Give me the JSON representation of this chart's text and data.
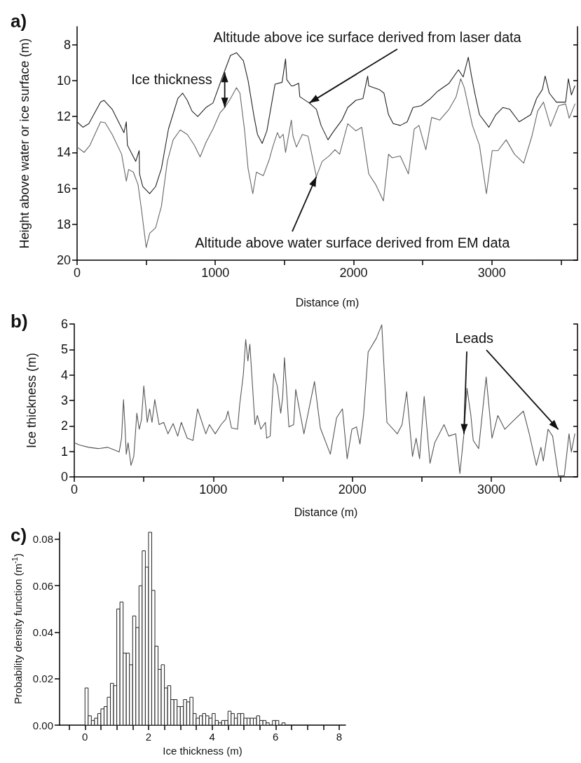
{
  "chart_data": [
    {
      "type": "line",
      "title": "a)",
      "xlabel": "Distance (m)",
      "ylabel": "Height above water or ice surface (m)",
      "marker": "none",
      "xlim": [
        0,
        3620
      ],
      "xticks": [
        0,
        {
          "value": 500,
          "label": null
        },
        1000,
        {
          "value": 1500,
          "label": null
        },
        2000,
        {
          "value": 2500,
          "label": null
        },
        3000,
        {
          "value": 3500,
          "label": null
        }
      ],
      "ylim": [
        20,
        7
      ],
      "yticks": [
        8,
        10,
        12,
        14,
        16,
        18,
        20
      ],
      "series": [
        {
          "color": "#222222",
          "x": [
            0,
            42,
            85,
            170,
            195,
            254,
            339,
            356,
            364,
            424,
            449,
            452,
            475,
            525,
            568,
            610,
            661,
            729,
            763,
            797,
            831,
            873,
            932,
            983,
            1051,
            1110,
            1153,
            1203,
            1237,
            1280,
            1305,
            1339,
            1373,
            1432,
            1483,
            1508,
            1517,
            1550,
            1562,
            1603,
            1611,
            1680,
            1731,
            1765,
            1815,
            1849,
            1916,
            1958,
            2017,
            2068,
            2102,
            2110,
            2186,
            2220,
            2253,
            2287,
            2338,
            2388,
            2430,
            2489,
            2557,
            2608,
            2691,
            2759,
            2793,
            2830,
            2852,
            2877,
            2911,
            2979,
            3029,
            3080,
            3130,
            3198,
            3282,
            3324,
            3366,
            3386,
            3416,
            3467,
            3534,
            3554,
            3576,
            3601
          ],
          "values": [
            12.3,
            12.6,
            12.4,
            11.2,
            11.1,
            11.6,
            12.9,
            12.3,
            13.6,
            14.5,
            13.9,
            15.2,
            15.9,
            16.3,
            15.9,
            14.9,
            12.7,
            11.0,
            10.7,
            11.1,
            11.7,
            12.0,
            11.5,
            11.25,
            9.8,
            8.6,
            8.45,
            8.9,
            10.0,
            12.0,
            13.0,
            13.5,
            12.8,
            10.2,
            10.1,
            8.8,
            9.95,
            10.3,
            10.3,
            10.15,
            10.9,
            11.25,
            11.6,
            12.5,
            13.3,
            12.9,
            12.2,
            11.5,
            11.1,
            11.0,
            9.75,
            10.3,
            10.5,
            10.7,
            11.9,
            12.4,
            12.5,
            12.3,
            11.5,
            11.4,
            11.0,
            10.6,
            10.15,
            9.4,
            9.8,
            8.7,
            9.7,
            10.7,
            11.9,
            12.6,
            11.9,
            11.5,
            11.6,
            12.3,
            11.9,
            11.0,
            10.5,
            9.75,
            10.7,
            11.2,
            11.2,
            9.9,
            10.8,
            10.3
          ]
        },
        {
          "color": "#666666",
          "x": [
            0,
            51,
            93,
            170,
            203,
            254,
            322,
            356,
            373,
            407,
            441,
            466,
            500,
            525,
            568,
            610,
            653,
            695,
            746,
            797,
            848,
            890,
            932,
            983,
            1034,
            1068,
            1110,
            1153,
            1178,
            1212,
            1237,
            1271,
            1297,
            1347,
            1390,
            1415,
            1449,
            1466,
            1491,
            1508,
            1550,
            1562,
            1587,
            1629,
            1671,
            1731,
            1773,
            1823,
            1866,
            1899,
            1958,
            2017,
            2059,
            2110,
            2161,
            2216,
            2253,
            2279,
            2338,
            2397,
            2439,
            2473,
            2523,
            2565,
            2624,
            2691,
            2742,
            2775,
            2801,
            2860,
            2911,
            2961,
            3003,
            3045,
            3104,
            3164,
            3231,
            3290,
            3332,
            3374,
            3425,
            3484,
            3534,
            3560,
            3602
          ],
          "values": [
            13.7,
            14.0,
            13.6,
            12.3,
            12.35,
            13.0,
            14.1,
            15.6,
            14.95,
            15.1,
            15.8,
            17.2,
            19.3,
            18.5,
            18.2,
            17.0,
            14.5,
            13.3,
            12.75,
            13.0,
            13.6,
            14.25,
            13.45,
            12.7,
            11.8,
            11.5,
            11.0,
            10.4,
            10.7,
            12.8,
            14.9,
            16.3,
            15.1,
            15.3,
            14.4,
            13.7,
            12.9,
            13.2,
            13.0,
            14.0,
            12.2,
            13.1,
            13.7,
            13.0,
            13.1,
            15.35,
            14.5,
            14.2,
            13.85,
            14.1,
            12.4,
            12.8,
            12.6,
            15.2,
            15.8,
            16.7,
            14.1,
            14.3,
            14.2,
            15.2,
            12.7,
            12.5,
            13.85,
            12.05,
            12.2,
            11.6,
            10.9,
            9.9,
            10.4,
            12.5,
            13.6,
            16.3,
            13.9,
            13.9,
            13.3,
            14.1,
            14.6,
            13.1,
            11.7,
            11.2,
            12.55,
            11.4,
            11.3,
            12.1,
            11.3
          ]
        }
      ],
      "annotations": [
        {
          "text": "Ice thickness",
          "x": 1068,
          "y": 11.5
        },
        {
          "text": "Altitude above ice surface derived from laser data",
          "x": 1680,
          "y": 11.25
        },
        {
          "text": "Altitude above water surface derived from EM data",
          "x": 1731,
          "y": 15.35
        }
      ]
    },
    {
      "type": "line",
      "title": "b)",
      "xlabel": "Distance (m)",
      "ylabel": "Ice thickness (m)",
      "marker": "none",
      "xlim": [
        0,
        3620
      ],
      "xticks": [
        0,
        {
          "value": 500,
          "label": null
        },
        1000,
        {
          "value": 1500,
          "label": null
        },
        2000,
        {
          "value": 2500,
          "label": null
        },
        3000,
        {
          "value": 3500,
          "label": null
        }
      ],
      "ylim": [
        0,
        6
      ],
      "yticks": [
        0,
        1,
        2,
        3,
        4,
        5,
        6
      ],
      "series": [
        {
          "color": "#555555",
          "x": [
            0,
            37,
            104,
            172,
            239,
            306,
            323,
            340,
            354,
            365,
            374,
            387,
            408,
            428,
            450,
            467,
            483,
            500,
            525,
            542,
            559,
            579,
            610,
            643,
            674,
            711,
            744,
            770,
            812,
            854,
            887,
            946,
            972,
            1014,
            1056,
            1090,
            1106,
            1131,
            1174,
            1190,
            1216,
            1233,
            1249,
            1263,
            1300,
            1317,
            1342,
            1375,
            1384,
            1409,
            1435,
            1460,
            1485,
            1499,
            1512,
            1544,
            1578,
            1593,
            1652,
            1728,
            1770,
            1842,
            1887,
            1929,
            1963,
            1997,
            2030,
            2055,
            2081,
            2114,
            2173,
            2212,
            2249,
            2324,
            2358,
            2391,
            2433,
            2459,
            2484,
            2517,
            2559,
            2593,
            2660,
            2694,
            2744,
            2774,
            2803,
            2825,
            2853,
            2870,
            2909,
            2963,
            3005,
            3047,
            3097,
            3164,
            3231,
            3273,
            3324,
            3357,
            3374,
            3408,
            3441,
            3483,
            3525,
            3559,
            3576,
            3601
          ],
          "values": [
            1.34,
            1.25,
            1.16,
            1.11,
            1.16,
            1.02,
            0.98,
            1.52,
            3.03,
            1.96,
            0.89,
            1.34,
            0.45,
            0.8,
            2.5,
            1.87,
            2.23,
            3.57,
            2.14,
            2.67,
            2.14,
            3.03,
            2.05,
            2.14,
            1.69,
            2.09,
            1.6,
            2.14,
            1.52,
            1.43,
            2.67,
            1.69,
            2.05,
            1.69,
            2.05,
            2.27,
            2.58,
            1.92,
            1.87,
            2.85,
            4.01,
            5.39,
            4.55,
            5.21,
            2.05,
            2.41,
            1.87,
            2.14,
            1.52,
            1.6,
            4.06,
            3.57,
            2.5,
            3.12,
            4.68,
            1.96,
            2.05,
            3.43,
            1.69,
            3.74,
            1.92,
            0.89,
            2.32,
            2.67,
            0.71,
            1.87,
            1.96,
            1.29,
            2.41,
            4.9,
            5.44,
            5.97,
            2.14,
            1.69,
            2.05,
            3.34,
            0.8,
            1.52,
            0.71,
            3.16,
            0.53,
            1.34,
            2.05,
            1.6,
            1.69,
            0.13,
            1.69,
            3.48,
            2.41,
            1.43,
            1.11,
            3.92,
            1.52,
            2.41,
            1.87,
            2.23,
            2.58,
            1.69,
            0.45,
            1.16,
            0.62,
            1.87,
            1.6,
            0.04,
            0.04,
            1.69,
            0.98,
            1.69
          ]
        }
      ],
      "annotations": [
        {
          "text": "Leads",
          "x": 2803,
          "y": 1.69
        }
      ]
    },
    {
      "type": "histogram",
      "title": "c)",
      "xlabel": "Ice thickness (m)",
      "ylabel": "Probability density function (m$^{-1}$)",
      "color": "#ffffff",
      "xlim": [
        -0.8,
        8.2
      ],
      "xticks": [
        {
          "value": -0.5,
          "label": null
        },
        0,
        {
          "value": 0.5,
          "label": null
        },
        {
          "value": 1,
          "label": null
        },
        {
          "value": 1.5,
          "label": null
        },
        2,
        {
          "value": 2.5,
          "label": null
        },
        {
          "value": 3,
          "label": null
        },
        {
          "value": 3.5,
          "label": null
        },
        4,
        {
          "value": 4.5,
          "label": null
        },
        {
          "value": 5,
          "label": null
        },
        {
          "value": 5.5,
          "label": null
        },
        6,
        {
          "value": 6.5,
          "label": null
        },
        {
          "value": 7,
          "label": null
        },
        {
          "value": 7.5,
          "label": null
        },
        8
      ],
      "ylim": [
        0,
        0.083
      ],
      "yticks": [
        {
          "value": 0,
          "label": "0.00"
        },
        {
          "value": 0.02,
          "label": "0.02"
        },
        {
          "value": 0.04,
          "label": "0.04"
        },
        {
          "value": 0.06,
          "label": "0.06"
        },
        {
          "value": 0.08,
          "label": "0.08"
        }
      ],
      "bins": [
        0,
        0.1,
        0.2,
        0.3,
        0.4,
        0.5,
        0.6,
        0.7,
        0.8,
        0.9,
        1,
        1.1,
        1.2,
        1.3,
        1.4,
        1.5,
        1.6,
        1.7,
        1.8,
        1.9,
        2,
        2.1,
        2.2,
        2.3,
        2.4,
        2.5,
        2.6,
        2.7,
        2.8,
        2.9,
        3,
        3.1,
        3.2,
        3.3,
        3.4,
        3.5,
        3.6,
        3.7,
        3.8,
        3.9,
        4,
        4.1,
        4.2,
        4.3,
        4.4,
        4.5,
        4.6,
        4.7,
        4.8,
        4.9,
        5,
        5.1,
        5.2,
        5.3,
        5.4,
        5.5,
        5.6,
        5.7,
        5.8,
        5.9,
        6,
        6.1,
        6.2,
        6.3
      ],
      "values": [
        0.016,
        0.004,
        0.002,
        0.003,
        0.005,
        0.007,
        0.008,
        0.012,
        0.018,
        0.017,
        0.05,
        0.053,
        0.031,
        0.031,
        0.026,
        0.047,
        0.042,
        0.06,
        0.075,
        0.068,
        0.083,
        0.058,
        0.034,
        0.024,
        0.026,
        0.016,
        0.017,
        0.011,
        0.011,
        0.008,
        0.008,
        0.011,
        0.01,
        0.012,
        0.005,
        0.003,
        0.004,
        0.005,
        0.004,
        0.003,
        0.005,
        0.002,
        0.001,
        0.002,
        0.002,
        0.006,
        0.005,
        0.003,
        0.005,
        0.005,
        0.003,
        0.003,
        0.003,
        0.003,
        0.004,
        0.002,
        0.002,
        0.001,
        0,
        0.002,
        0.002,
        0,
        0.001
      ]
    }
  ]
}
